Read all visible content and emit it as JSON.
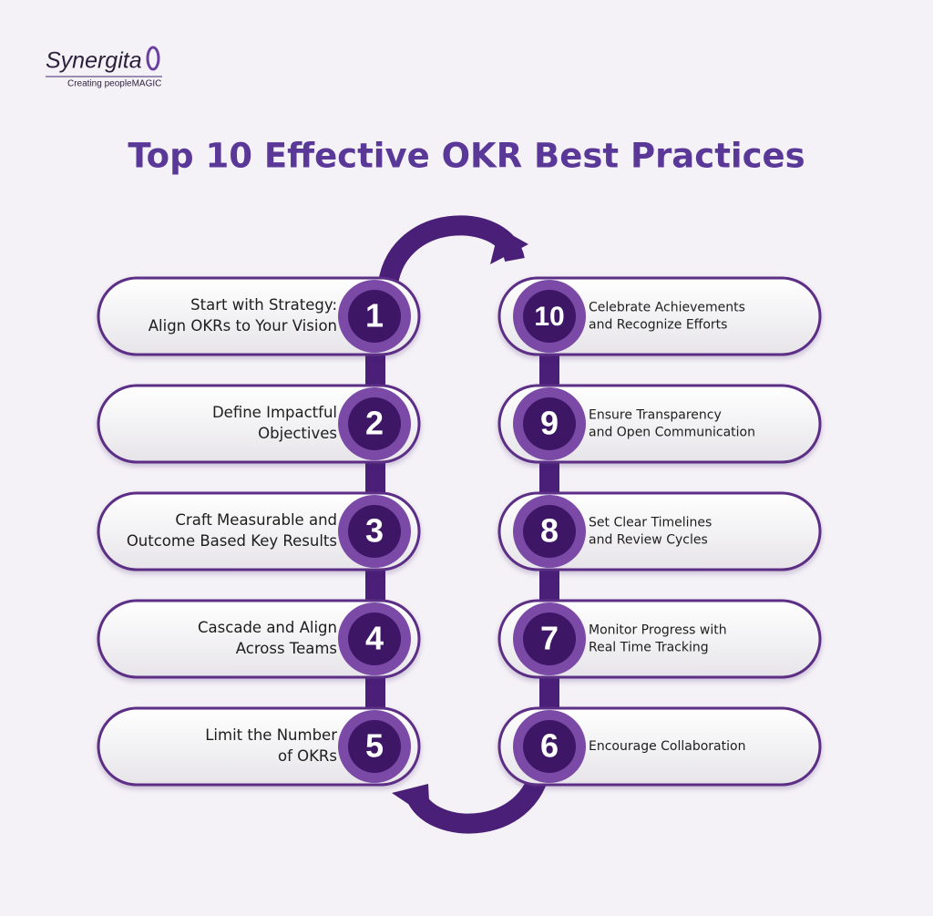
{
  "logo": {
    "name": "Synergita",
    "tagline": "Creating peopleMAGIC"
  },
  "title": "Top 10 Effective OKR Best Practices",
  "left_items": [
    {
      "number": "1",
      "lines": [
        "Start with Strategy:",
        "Align OKRs to Your Vision"
      ]
    },
    {
      "number": "2",
      "lines": [
        "Define Impactful",
        "Objectives"
      ]
    },
    {
      "number": "3",
      "lines": [
        "Craft Measurable and",
        "Outcome Based Key Results"
      ]
    },
    {
      "number": "4",
      "lines": [
        "Cascade and Align",
        "Across Teams"
      ]
    },
    {
      "number": "5",
      "lines": [
        "Limit the Number",
        "of OKRs"
      ]
    }
  ],
  "right_items": [
    {
      "number": "10",
      "lines": [
        "Celebrate Achievements",
        "and Recognize Efforts"
      ]
    },
    {
      "number": "9",
      "lines": [
        "Ensure Transparency",
        "and Open Communication"
      ]
    },
    {
      "number": "8",
      "lines": [
        "Set Clear Timelines",
        "and Review Cycles"
      ]
    },
    {
      "number": "7",
      "lines": [
        "Monitor Progress with",
        "Real Time Tracking"
      ]
    },
    {
      "number": "6",
      "lines": [
        "Encourage Collaboration"
      ]
    }
  ]
}
